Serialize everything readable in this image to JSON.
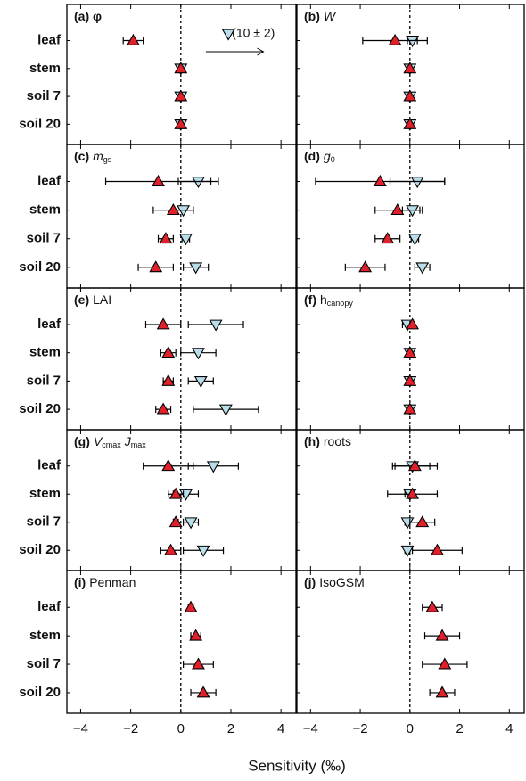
{
  "chart_data": {
    "type": "dotplot",
    "xlabel": "Sensitivity (‰)",
    "xlim": [
      -4.55,
      4.6
    ],
    "xticks": [
      {
        "value": -4,
        "label": "−4"
      },
      {
        "value": -2,
        "label": "−2"
      },
      0,
      2,
      4
    ],
    "categories": [
      "leaf",
      "stem",
      "soil 7",
      "soil 20"
    ],
    "panels": [
      {
        "title_parts": [
          {
            "text": "(a) φ",
            "style": "bold-label"
          }
        ],
        "annotation": "(10 ± 2)",
        "series": [
          {
            "color": "#b9dde9",
            "marker": "down",
            "values": [
              10,
              0,
              0,
              0
            ],
            "errors": [
              2,
              0,
              0,
              0
            ]
          },
          {
            "color": "#e0202a",
            "marker": "up",
            "values": [
              -1.9,
              0,
              0,
              0
            ],
            "errors": [
              0.4,
              0,
              0,
              0
            ]
          }
        ]
      },
      {
        "title_parts": [
          {
            "text": "(b)",
            "style": "bold-label"
          },
          {
            "text": "W",
            "style": "italic"
          }
        ],
        "series": [
          {
            "color": "#b9dde9",
            "marker": "down",
            "values": [
              0.1,
              0,
              0,
              0
            ],
            "errors": [
              0.2,
              0,
              0,
              0
            ]
          },
          {
            "color": "#e0202a",
            "marker": "up",
            "values": [
              -0.6,
              0,
              0,
              0
            ],
            "errors": [
              1.3,
              0,
              0,
              0
            ]
          }
        ]
      },
      {
        "title_parts": [
          {
            "text": "(c)",
            "style": "bold-label"
          },
          {
            "text": "m",
            "style": "italic"
          },
          {
            "text": "gs",
            "style": "sub"
          }
        ],
        "series": [
          {
            "color": "#b9dde9",
            "marker": "down",
            "values": [
              0.7,
              0.1,
              0.2,
              0.6
            ],
            "errors": [
              0.8,
              0.4,
              0.15,
              0.5
            ]
          },
          {
            "color": "#e0202a",
            "marker": "up",
            "values": [
              -0.9,
              -0.3,
              -0.6,
              -1.0
            ],
            "errors": [
              2.1,
              0.8,
              0.3,
              0.7
            ]
          }
        ]
      },
      {
        "title_parts": [
          {
            "text": "(d)",
            "style": "bold-label"
          },
          {
            "text": "g",
            "style": "italic"
          },
          {
            "text": "0",
            "style": "sub"
          }
        ],
        "series": [
          {
            "color": "#b9dde9",
            "marker": "down",
            "values": [
              0.3,
              0.1,
              0.2,
              0.5
            ],
            "errors": [
              1.1,
              0.4,
              0.15,
              0.3
            ]
          },
          {
            "color": "#e0202a",
            "marker": "up",
            "values": [
              -1.2,
              -0.5,
              -0.9,
              -1.8
            ],
            "errors": [
              2.6,
              0.9,
              0.5,
              0.8
            ]
          }
        ]
      },
      {
        "title_parts": [
          {
            "text": "(e)",
            "style": "bold-label"
          },
          {
            "text": "LAI",
            "style": "plain"
          }
        ],
        "series": [
          {
            "color": "#b9dde9",
            "marker": "down",
            "values": [
              1.4,
              0.7,
              0.8,
              1.8
            ],
            "errors": [
              1.1,
              0.7,
              0.5,
              1.3
            ]
          },
          {
            "color": "#e0202a",
            "marker": "up",
            "values": [
              -0.7,
              -0.5,
              -0.5,
              -0.7
            ],
            "errors": [
              0.7,
              0.3,
              0.2,
              0.3
            ]
          }
        ]
      },
      {
        "title_parts": [
          {
            "text": "(f)",
            "style": "bold-label"
          },
          {
            "text": "h",
            "style": "plain"
          },
          {
            "text": "canopy",
            "style": "sub"
          }
        ],
        "series": [
          {
            "color": "#b9dde9",
            "marker": "down",
            "values": [
              -0.1,
              0,
              0,
              0
            ],
            "errors": [
              0.2,
              0,
              0,
              0
            ]
          },
          {
            "color": "#e0202a",
            "marker": "up",
            "values": [
              0.1,
              0,
              0,
              0
            ],
            "errors": [
              0.1,
              0,
              0,
              0
            ]
          }
        ]
      },
      {
        "title_parts": [
          {
            "text": "(g)",
            "style": "bold-label"
          },
          {
            "text": "V",
            "style": "italic"
          },
          {
            "text": "cmax",
            "style": "sub"
          },
          {
            "text": "J",
            "style": "italic"
          },
          {
            "text": "max",
            "style": "sub"
          }
        ],
        "series": [
          {
            "color": "#b9dde9",
            "marker": "down",
            "values": [
              1.3,
              0.2,
              0.4,
              0.9
            ],
            "errors": [
              1.0,
              0.5,
              0.3,
              0.8
            ]
          },
          {
            "color": "#e0202a",
            "marker": "up",
            "values": [
              -0.5,
              -0.2,
              -0.2,
              -0.4
            ],
            "errors": [
              1.0,
              0.3,
              0.1,
              0.4
            ]
          }
        ]
      },
      {
        "title_parts": [
          {
            "text": "(h)",
            "style": "bold-label"
          },
          {
            "text": "roots",
            "style": "plain"
          }
        ],
        "series": [
          {
            "color": "#b9dde9",
            "marker": "down",
            "values": [
              0.1,
              0,
              -0.1,
              -0.1
            ],
            "errors": [
              0.7,
              0.2,
              0.1,
              0.1
            ]
          },
          {
            "color": "#e0202a",
            "marker": "up",
            "values": [
              0.2,
              0.1,
              0.5,
              1.1
            ],
            "errors": [
              0.9,
              1.0,
              0.5,
              1.0
            ]
          }
        ]
      },
      {
        "title_parts": [
          {
            "text": "(i)",
            "style": "bold-label"
          },
          {
            "text": "Penman",
            "style": "plain"
          }
        ],
        "series": [
          {
            "color": "#e0202a",
            "marker": "up",
            "values": [
              0.4,
              0.6,
              0.7,
              0.9
            ],
            "errors": [
              0.1,
              0.2,
              0.6,
              0.5
            ]
          }
        ]
      },
      {
        "title_parts": [
          {
            "text": "(j)",
            "style": "bold-label"
          },
          {
            "text": "IsoGSM",
            "style": "plain"
          }
        ],
        "series": [
          {
            "color": "#e0202a",
            "marker": "up",
            "values": [
              0.9,
              1.3,
              1.4,
              1.3
            ],
            "errors": [
              0.4,
              0.7,
              0.9,
              0.5
            ]
          }
        ]
      }
    ]
  }
}
